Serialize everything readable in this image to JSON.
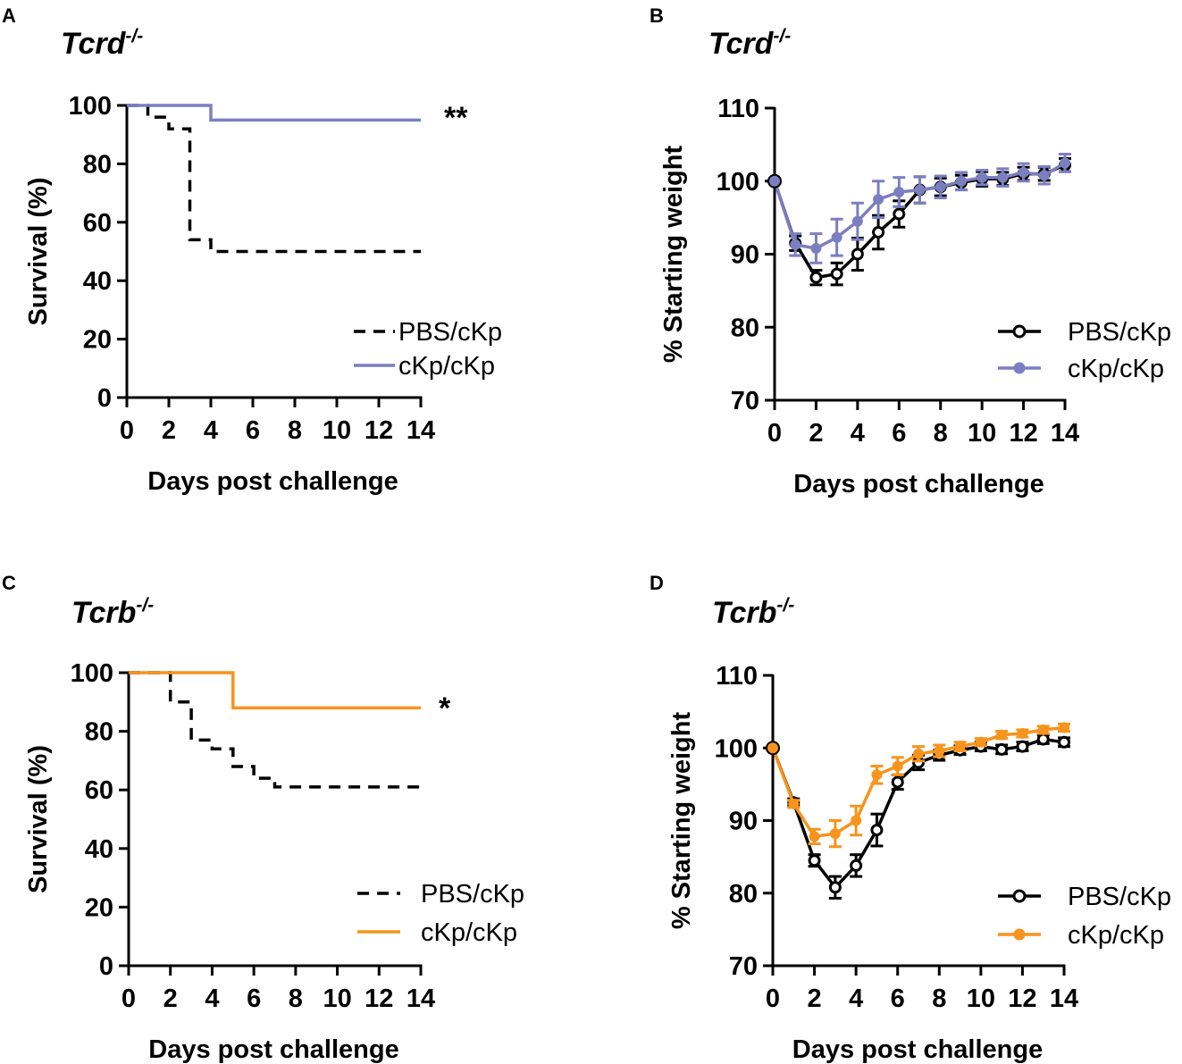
{
  "colors": {
    "black": "#000000",
    "purple": "#7B7FBF",
    "orange": "#F7941D"
  },
  "chart_data": [
    {
      "panel": "A",
      "type": "line",
      "subtype": "kaplan-meier",
      "title": "Tcrd",
      "title_sup": "-/-",
      "xlabel": "Days post challenge",
      "ylabel": "Survival (%)",
      "xlim": [
        0,
        14
      ],
      "ylim": [
        0,
        100
      ],
      "xticks": [
        0,
        2,
        4,
        6,
        8,
        10,
        12,
        14
      ],
      "yticks": [
        0,
        20,
        40,
        60,
        80,
        100
      ],
      "annotation": "**",
      "legend_position": "bottom-right",
      "series": [
        {
          "name": "PBS/cKp",
          "color": "#000000",
          "dash": true,
          "x": [
            0,
            1,
            1,
            2,
            2,
            3,
            3,
            4,
            4,
            14
          ],
          "y": [
            100,
            100,
            96,
            96,
            92,
            92,
            54,
            54,
            50,
            50
          ]
        },
        {
          "name": "cKp/cKp",
          "color": "#7B7FBF",
          "dash": false,
          "x": [
            0,
            4,
            4,
            14
          ],
          "y": [
            100,
            100,
            95,
            95
          ]
        }
      ]
    },
    {
      "panel": "B",
      "type": "line",
      "subtype": "weight",
      "title": "Tcrd",
      "title_sup": "-/-",
      "xlabel": "Days post challenge",
      "ylabel": "% Starting weight",
      "xlim": [
        0,
        14
      ],
      "ylim": [
        70,
        110
      ],
      "xticks": [
        0,
        2,
        4,
        6,
        8,
        10,
        12,
        14
      ],
      "yticks": [
        70,
        80,
        90,
        100,
        110
      ],
      "legend_position": "bottom-right",
      "series": [
        {
          "name": "PBS/cKp",
          "color": "#000000",
          "marker": "open-circle",
          "x": [
            0,
            1,
            2,
            3,
            4,
            5,
            6,
            7,
            8,
            9,
            10,
            11,
            12,
            13,
            14
          ],
          "y": [
            100,
            91.5,
            86.8,
            87.3,
            90,
            93,
            95.5,
            98.8,
            99.2,
            99.8,
            100.3,
            100.3,
            101,
            101,
            102.2
          ],
          "err": [
            0,
            1,
            1,
            1.5,
            2.2,
            2.3,
            1.8,
            1.8,
            1.2,
            1,
            1,
            0.9,
            0.9,
            0.9,
            0.9
          ]
        },
        {
          "name": "cKp/cKp",
          "color": "#7B7FBF",
          "marker": "filled-circle",
          "x": [
            0,
            1,
            2,
            3,
            4,
            5,
            6,
            7,
            8,
            9,
            10,
            11,
            12,
            13,
            14
          ],
          "y": [
            100,
            91.3,
            90.8,
            92.3,
            94.5,
            97.5,
            98.5,
            98.8,
            99.2,
            100,
            100.5,
            100.5,
            101.2,
            100.8,
            102.5
          ],
          "err": [
            0,
            1.5,
            2,
            2.5,
            2.5,
            2.5,
            2,
            1.8,
            1.5,
            1.2,
            1,
            1.2,
            1.2,
            1.2,
            1.2
          ]
        }
      ]
    },
    {
      "panel": "C",
      "type": "line",
      "subtype": "kaplan-meier",
      "title": "Tcrb",
      "title_sup": "-/-",
      "xlabel": "Days post challenge",
      "ylabel": "Survival (%)",
      "xlim": [
        0,
        14
      ],
      "ylim": [
        0,
        100
      ],
      "xticks": [
        0,
        2,
        4,
        6,
        8,
        10,
        12,
        14
      ],
      "yticks": [
        0,
        20,
        40,
        60,
        80,
        100
      ],
      "annotation": "*",
      "legend_position": "bottom-right",
      "series": [
        {
          "name": "PBS/cKp",
          "color": "#000000",
          "dash": true,
          "x": [
            0,
            2,
            2,
            3,
            3,
            4,
            4,
            5,
            5,
            6,
            6,
            7,
            7,
            14
          ],
          "y": [
            100,
            100,
            90,
            90,
            77,
            77,
            74,
            74,
            68,
            68,
            64,
            64,
            61,
            61
          ]
        },
        {
          "name": "cKp/cKp",
          "color": "#F7941D",
          "dash": false,
          "x": [
            0,
            5,
            5,
            14
          ],
          "y": [
            100,
            100,
            88,
            88
          ]
        }
      ]
    },
    {
      "panel": "D",
      "type": "line",
      "subtype": "weight",
      "title": "Tcrb",
      "title_sup": "-/-",
      "xlabel": "Days post challenge",
      "ylabel": "% Starting weight",
      "xlim": [
        0,
        14
      ],
      "ylim": [
        70,
        110
      ],
      "xticks": [
        0,
        2,
        4,
        6,
        8,
        10,
        12,
        14
      ],
      "yticks": [
        70,
        80,
        90,
        100,
        110
      ],
      "legend_position": "bottom-right",
      "series": [
        {
          "name": "PBS/cKp",
          "color": "#000000",
          "marker": "open-circle",
          "x": [
            0,
            1,
            2,
            3,
            4,
            5,
            6,
            7,
            8,
            9,
            10,
            11,
            12,
            13,
            14
          ],
          "y": [
            100,
            92.5,
            84.5,
            80.8,
            83.8,
            88.7,
            95.3,
            98,
            99,
            99.7,
            100.2,
            99.8,
            100.2,
            101.2,
            100.8
          ],
          "err": [
            0,
            0.5,
            0.8,
            1.5,
            1.5,
            2.2,
            1,
            1,
            0.7,
            0.6,
            0.6,
            0.6,
            0.6,
            0.6,
            0.6
          ]
        },
        {
          "name": "cKp/cKp",
          "color": "#F7941D",
          "marker": "filled-circle",
          "x": [
            0,
            1,
            2,
            3,
            4,
            5,
            6,
            7,
            8,
            9,
            10,
            11,
            12,
            13,
            14
          ],
          "y": [
            100,
            92.3,
            87.8,
            88.2,
            90,
            96.3,
            97.5,
            99.2,
            99.6,
            100.2,
            100.8,
            101.8,
            102,
            102.5,
            102.8
          ],
          "err": [
            0,
            0.5,
            1,
            1.8,
            2,
            1.2,
            1.2,
            1,
            0.8,
            0.6,
            0.5,
            0.5,
            0.5,
            0.5,
            0.5
          ]
        }
      ]
    }
  ]
}
